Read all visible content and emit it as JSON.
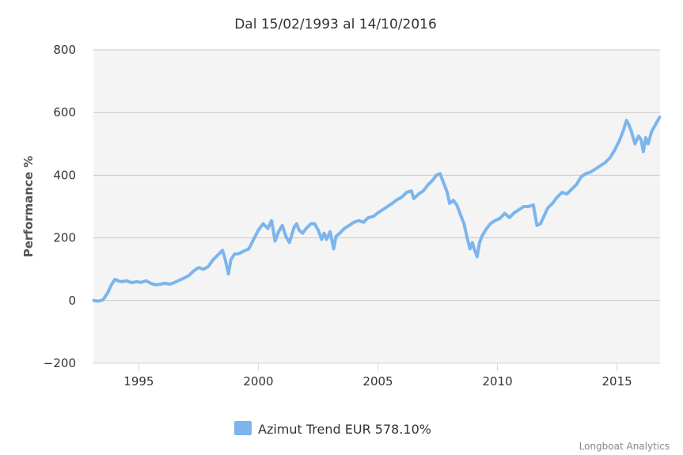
{
  "chart_data": {
    "type": "line",
    "title": "Dal 15/02/1993 al 14/10/2016",
    "xlabel": "",
    "ylabel": "Performance %",
    "xlim": [
      1993.1,
      2016.8
    ],
    "ylim": [
      -200,
      800
    ],
    "yticks": [
      -200,
      0,
      200,
      400,
      600,
      800
    ],
    "xticks": [
      1995,
      2000,
      2005,
      2010,
      2015
    ],
    "grid": true,
    "legend_position": "bottom-center",
    "series": [
      {
        "name": "Azimut Trend EUR 578.10%",
        "color": "#7cb5ec",
        "x": [
          1993.12,
          1993.3,
          1993.5,
          1993.7,
          1993.85,
          1994.0,
          1994.15,
          1994.3,
          1994.5,
          1994.7,
          1994.9,
          1995.1,
          1995.3,
          1995.5,
          1995.7,
          1995.9,
          1996.1,
          1996.3,
          1996.5,
          1996.7,
          1996.9,
          1997.1,
          1997.3,
          1997.5,
          1997.7,
          1997.9,
          1998.1,
          1998.3,
          1998.5,
          1998.6,
          1998.75,
          1998.85,
          1999.0,
          1999.2,
          1999.4,
          1999.6,
          1999.8,
          2000.0,
          2000.2,
          2000.4,
          2000.55,
          2000.7,
          2000.85,
          2001.0,
          2001.15,
          2001.3,
          2001.5,
          2001.6,
          2001.7,
          2001.85,
          2002.0,
          2002.2,
          2002.35,
          2002.5,
          2002.65,
          2002.75,
          2002.85,
          2003.0,
          2003.15,
          2003.25,
          2003.4,
          2003.6,
          2003.8,
          2004.0,
          2004.2,
          2004.4,
          2004.6,
          2004.8,
          2005.0,
          2005.2,
          2005.4,
          2005.6,
          2005.8,
          2006.0,
          2006.2,
          2006.4,
          2006.5,
          2006.7,
          2006.9,
          2007.1,
          2007.3,
          2007.45,
          2007.6,
          2007.75,
          2007.9,
          2008.0,
          2008.15,
          2008.3,
          2008.45,
          2008.6,
          2008.75,
          2008.85,
          2008.95,
          2009.05,
          2009.15,
          2009.25,
          2009.35,
          2009.5,
          2009.7,
          2009.9,
          2010.1,
          2010.3,
          2010.5,
          2010.7,
          2010.9,
          2011.1,
          2011.3,
          2011.5,
          2011.65,
          2011.8,
          2011.95,
          2012.1,
          2012.3,
          2012.5,
          2012.7,
          2012.9,
          2013.1,
          2013.3,
          2013.5,
          2013.7,
          2013.9,
          2014.1,
          2014.3,
          2014.5,
          2014.7,
          2014.9,
          2015.1,
          2015.25,
          2015.4,
          2015.5,
          2015.6,
          2015.75,
          2015.9,
          2016.0,
          2016.1,
          2016.2,
          2016.3,
          2016.45,
          2016.6,
          2016.78
        ],
        "values": [
          0,
          -2,
          2,
          25,
          50,
          68,
          62,
          60,
          63,
          57,
          60,
          58,
          63,
          55,
          50,
          52,
          55,
          52,
          58,
          65,
          72,
          80,
          95,
          105,
          100,
          108,
          130,
          145,
          160,
          135,
          85,
          130,
          148,
          150,
          158,
          165,
          195,
          225,
          245,
          230,
          255,
          190,
          220,
          240,
          205,
          185,
          235,
          245,
          225,
          215,
          230,
          245,
          245,
          225,
          195,
          215,
          195,
          220,
          165,
          205,
          215,
          230,
          240,
          250,
          255,
          250,
          265,
          268,
          280,
          290,
          300,
          310,
          322,
          330,
          345,
          350,
          325,
          340,
          350,
          370,
          385,
          400,
          405,
          375,
          345,
          310,
          320,
          305,
          275,
          245,
          195,
          165,
          185,
          160,
          140,
          185,
          205,
          225,
          245,
          255,
          262,
          278,
          265,
          280,
          290,
          300,
          300,
          305,
          240,
          245,
          270,
          295,
          310,
          330,
          345,
          340,
          355,
          370,
          395,
          405,
          410,
          420,
          430,
          440,
          455,
          480,
          510,
          540,
          575,
          560,
          540,
          500,
          525,
          515,
          475,
          520,
          500,
          540,
          560,
          585
        ]
      }
    ]
  },
  "credit": "Longboat Analytics"
}
